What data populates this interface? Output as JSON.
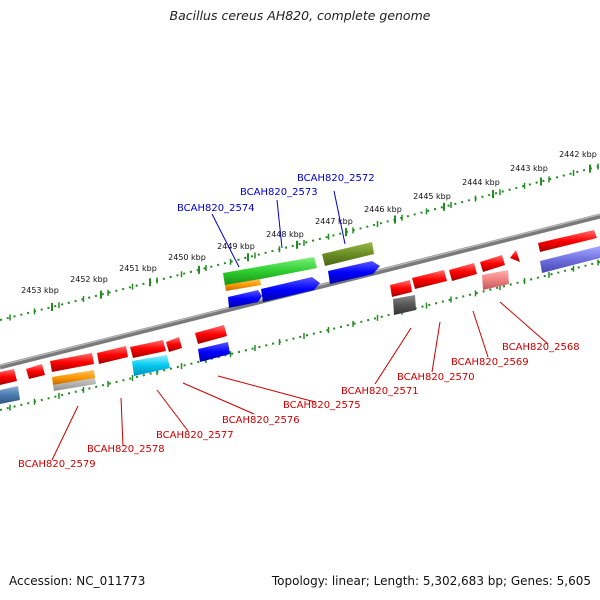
{
  "title": "Bacillus cereus AH820, complete genome",
  "footer": {
    "accession": "Accession: NC_011773",
    "summary": "Topology: linear; Length: 5,302,683 bp; Genes: 5,605"
  },
  "colors": {
    "forward_label": "#0000cc",
    "reverse_label": "#cc0000",
    "ruler": "#228b22",
    "backbone": "#888888"
  },
  "scale_labels": [
    "2442 kbp",
    "2443 kbp",
    "2444 kbp",
    "2445 kbp",
    "2446 kbp",
    "2447 kbp",
    "2448 kbp",
    "2449 kbp",
    "2450 kbp",
    "2451 kbp",
    "2452 kbp",
    "2453 kbp"
  ],
  "forward_gene_labels": [
    "BCAH820_2572",
    "BCAH820_2573",
    "BCAH820_2574"
  ],
  "reverse_gene_labels": [
    "BCAH820_2568",
    "BCAH820_2569",
    "BCAH820_2570",
    "BCAH820_2571",
    "BCAH820_2575",
    "BCAH820_2576",
    "BCAH820_2577",
    "BCAH820_2578",
    "BCAH820_2579"
  ]
}
